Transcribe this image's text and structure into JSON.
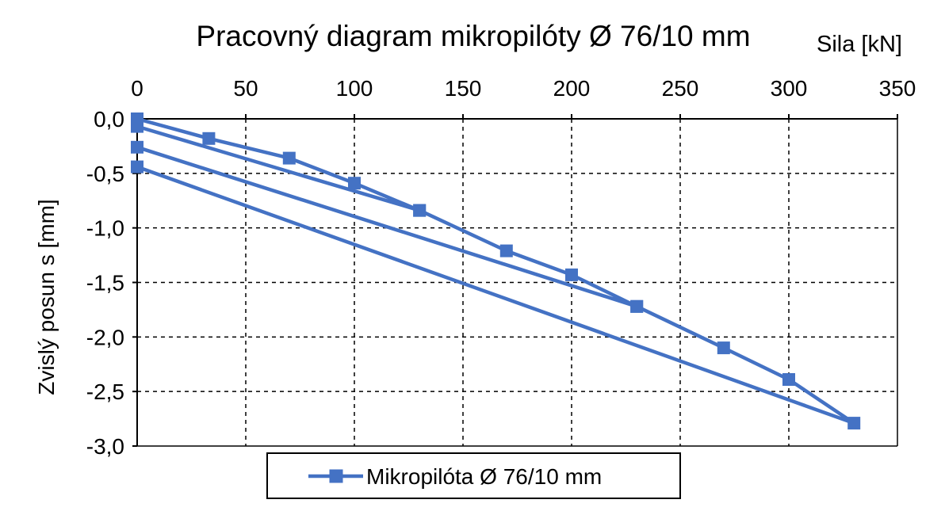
{
  "chart_data": {
    "type": "line",
    "title": "Pracovný diagram mikropilóty Ø 76/10 mm",
    "xlabel": "Sila [kN]",
    "ylabel": "Zvislý posun s [mm]",
    "xlim": [
      0,
      350
    ],
    "ylim": [
      -3.0,
      0.0
    ],
    "x_axis_position": "top",
    "x_ticks": [
      0,
      50,
      100,
      150,
      200,
      250,
      300,
      350
    ],
    "y_ticks": [
      0.0,
      -0.5,
      -1.0,
      -1.5,
      -2.0,
      -2.5,
      -3.0
    ],
    "x_tick_labels": [
      "0",
      "50",
      "100",
      "150",
      "200",
      "250",
      "300",
      "350"
    ],
    "y_tick_labels": [
      "0,0",
      "-0,5",
      "-1,0",
      "-1,5",
      "-2,0",
      "-2,5",
      "-3,0"
    ],
    "grid": true,
    "legend_position": "bottom",
    "series": [
      {
        "name": "Mikropilóta Ø 76/10 mm",
        "color": "#4472c4",
        "marker": "square",
        "points": [
          {
            "x": 0,
            "y": 0.0
          },
          {
            "x": 33,
            "y": -0.18
          },
          {
            "x": 70,
            "y": -0.36
          },
          {
            "x": 100,
            "y": -0.59
          },
          {
            "x": 130,
            "y": -0.84
          },
          {
            "x": 0,
            "y": -0.07
          },
          {
            "x": 130,
            "y": -0.84
          },
          {
            "x": 170,
            "y": -1.21
          },
          {
            "x": 200,
            "y": -1.43
          },
          {
            "x": 230,
            "y": -1.72
          },
          {
            "x": 0,
            "y": -0.26
          },
          {
            "x": 230,
            "y": -1.72
          },
          {
            "x": 270,
            "y": -2.1
          },
          {
            "x": 300,
            "y": -2.39
          },
          {
            "x": 330,
            "y": -2.79
          },
          {
            "x": 0,
            "y": -0.44
          }
        ]
      }
    ]
  }
}
